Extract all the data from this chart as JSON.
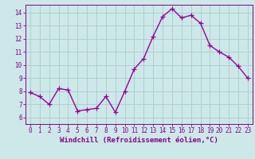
{
  "x": [
    0,
    1,
    2,
    3,
    4,
    5,
    6,
    7,
    8,
    9,
    10,
    11,
    12,
    13,
    14,
    15,
    16,
    17,
    18,
    19,
    20,
    21,
    22,
    23
  ],
  "y": [
    7.9,
    7.6,
    7.0,
    8.2,
    8.1,
    6.5,
    6.6,
    6.7,
    7.6,
    6.4,
    8.0,
    9.7,
    10.5,
    12.2,
    13.7,
    14.3,
    13.6,
    13.8,
    13.2,
    11.5,
    11.0,
    10.6,
    9.9,
    9.0
  ],
  "line_color": "#990099",
  "marker": "+",
  "marker_size": 4,
  "bg_color": "#cce8e8",
  "grid_color": "#aacccc",
  "xlabel": "Windchill (Refroidissement éolien,°C)",
  "ylim": [
    5.5,
    14.6
  ],
  "xlim": [
    -0.5,
    23.5
  ],
  "yticks": [
    6,
    7,
    8,
    9,
    10,
    11,
    12,
    13,
    14
  ],
  "xticks": [
    0,
    1,
    2,
    3,
    4,
    5,
    6,
    7,
    8,
    9,
    10,
    11,
    12,
    13,
    14,
    15,
    16,
    17,
    18,
    19,
    20,
    21,
    22,
    23
  ],
  "tick_fontsize": 5.5,
  "xlabel_fontsize": 6.5,
  "text_color": "#880088",
  "spine_color": "#880088",
  "linewidth": 1.0,
  "marker_size_pt": 4
}
